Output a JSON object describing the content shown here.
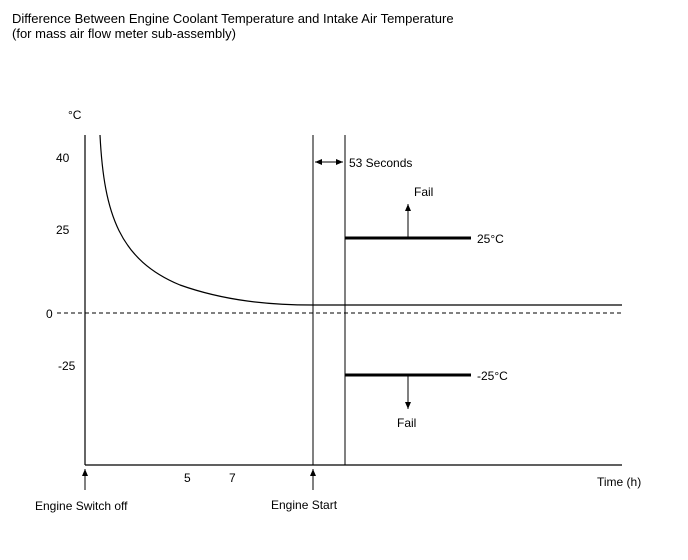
{
  "title": "Difference Between Engine Coolant Temperature and Intake Air Temperature",
  "subtitle": "(for mass air flow meter sub-assembly)",
  "y_unit": "°C",
  "y_ticks": [
    "40",
    "25",
    "0",
    "-25"
  ],
  "x_ticks": [
    "5",
    "7"
  ],
  "x_axis_label": "Time (h)",
  "event_switch_off": "Engine Switch off",
  "event_engine_start": "Engine Start",
  "interval_label": "53 Seconds",
  "upper_threshold_label": "25°C",
  "lower_threshold_label": "-25°C",
  "upper_fail_label": "Fail",
  "lower_fail_label": "Fail"
}
